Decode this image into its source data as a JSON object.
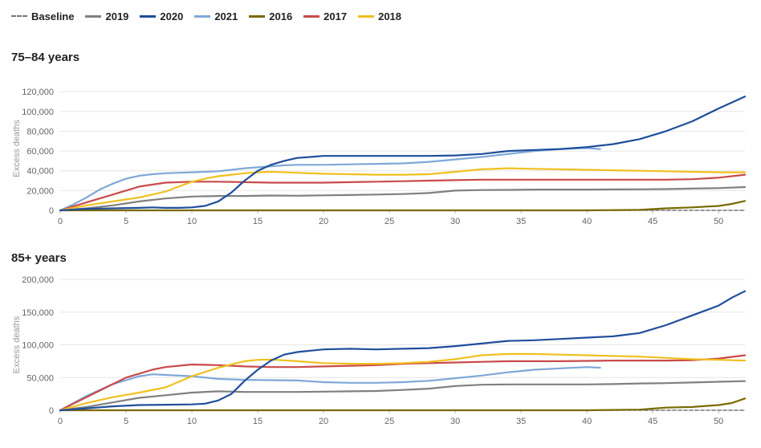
{
  "legend": [
    {
      "label": "Baseline",
      "color": "#777777",
      "dashed": true
    },
    {
      "label": "2019",
      "color": "#808080"
    },
    {
      "label": "2020",
      "color": "#1f4e9c"
    },
    {
      "label": "2021",
      "color": "#7fa8d8"
    },
    {
      "label": "2016",
      "color": "#7a6a00"
    },
    {
      "label": "2017",
      "color": "#c94a4a"
    },
    {
      "label": "2018",
      "color": "#f0c020"
    }
  ],
  "chart_data": [
    {
      "type": "line",
      "title": "75–84 years",
      "ylabel": "Excess deaths",
      "xlim": [
        0,
        52
      ],
      "ylim": [
        0,
        125000
      ],
      "xticks": [
        0,
        5,
        10,
        15,
        20,
        25,
        30,
        35,
        40,
        45,
        50
      ],
      "xtick_labels": [
        "0",
        "5",
        "10",
        "15",
        "20",
        "25",
        "30",
        "35",
        "40",
        "45",
        "50"
      ],
      "yticks": [
        0,
        20000,
        40000,
        60000,
        80000,
        100000,
        120000
      ],
      "ytick_labels": [
        "0",
        "20,000",
        "40,000",
        "60,000",
        "80,000",
        "100,000",
        "120,000"
      ],
      "grid": true,
      "series": [
        {
          "name": "Baseline",
          "color": "#777777",
          "dashed": true,
          "x": [
            0,
            52
          ],
          "y": [
            0,
            0
          ]
        },
        {
          "name": "2016",
          "color": "#7a6a00",
          "x": [
            0,
            5,
            10,
            20,
            30,
            40,
            44,
            46,
            48,
            50,
            51,
            52
          ],
          "y": [
            0,
            0,
            0,
            0,
            0,
            0,
            500,
            2000,
            3000,
            4500,
            6500,
            9500
          ]
        },
        {
          "name": "2019",
          "color": "#808080",
          "x": [
            0,
            2,
            4,
            6,
            8,
            10,
            12,
            14,
            16,
            18,
            20,
            22,
            24,
            26,
            28,
            30,
            32,
            34,
            36,
            38,
            40,
            42,
            44,
            46,
            48,
            50,
            52
          ],
          "y": [
            0,
            2000,
            5000,
            9000,
            12000,
            14000,
            14500,
            14500,
            15000,
            14800,
            15200,
            15500,
            16000,
            16500,
            17500,
            20000,
            20500,
            20700,
            21000,
            21000,
            21000,
            21200,
            21300,
            21500,
            22000,
            22500,
            23500
          ]
        },
        {
          "name": "2021",
          "color": "#7fa8d8",
          "x": [
            0,
            1,
            2,
            3,
            4,
            5,
            6,
            7,
            8,
            9,
            10,
            11,
            12,
            13,
            14,
            15,
            16,
            17,
            18,
            20,
            22,
            24,
            26,
            28,
            30,
            32,
            34,
            36,
            38,
            40,
            41
          ],
          "y": [
            0,
            6000,
            13000,
            21000,
            27000,
            32000,
            35000,
            36500,
            37500,
            38000,
            38500,
            39000,
            39500,
            41000,
            42500,
            43500,
            44500,
            45500,
            46000,
            46000,
            46500,
            47000,
            47500,
            49000,
            51500,
            54000,
            57000,
            60000,
            62000,
            63000,
            62000
          ]
        },
        {
          "name": "2017",
          "color": "#c94a4a",
          "x": [
            0,
            2,
            4,
            6,
            8,
            10,
            12,
            14,
            16,
            18,
            20,
            22,
            24,
            26,
            28,
            30,
            32,
            34,
            36,
            38,
            40,
            42,
            44,
            46,
            48,
            50,
            52
          ],
          "y": [
            0,
            8000,
            16000,
            24000,
            28000,
            29000,
            29000,
            28500,
            28000,
            28000,
            28000,
            28500,
            29000,
            29500,
            30000,
            30500,
            31000,
            31000,
            31000,
            31000,
            31000,
            31000,
            31000,
            31000,
            31500,
            33000,
            36000
          ]
        },
        {
          "name": "2018",
          "color": "#f0c020",
          "x": [
            0,
            2,
            4,
            6,
            7,
            8,
            9,
            10,
            11,
            12,
            13,
            14,
            15,
            16,
            18,
            20,
            22,
            24,
            26,
            28,
            30,
            32,
            34,
            36,
            38,
            40,
            42,
            44,
            46,
            48,
            50,
            52
          ],
          "y": [
            0,
            5000,
            9000,
            13000,
            16000,
            19000,
            24000,
            29000,
            32000,
            34500,
            36000,
            37500,
            38500,
            39000,
            38000,
            37000,
            36500,
            36000,
            36000,
            36500,
            39000,
            41500,
            42500,
            42000,
            41500,
            41000,
            40500,
            40000,
            39500,
            39000,
            38500,
            38500
          ]
        },
        {
          "name": "2020",
          "color": "#1f4e9c",
          "x": [
            0,
            2,
            4,
            6,
            7,
            8,
            9,
            10,
            11,
            12,
            13,
            14,
            15,
            16,
            17,
            18,
            19,
            20,
            22,
            24,
            26,
            28,
            30,
            32,
            34,
            36,
            38,
            40,
            42,
            44,
            46,
            48,
            50,
            52
          ],
          "y": [
            0,
            1500,
            2000,
            2500,
            3000,
            2500,
            2500,
            3000,
            4500,
            9000,
            18000,
            30000,
            40000,
            46000,
            50000,
            53000,
            54000,
            55000,
            55000,
            55000,
            55000,
            55000,
            55500,
            57000,
            60000,
            61000,
            62000,
            64000,
            67000,
            72000,
            80000,
            90000,
            103000,
            115000
          ]
        }
      ]
    },
    {
      "type": "line",
      "title": "85+ years",
      "ylabel": "Excess deaths",
      "xlim": [
        0,
        52
      ],
      "ylim": [
        0,
        200000
      ],
      "xticks": [
        0,
        5,
        10,
        15,
        20,
        25,
        30,
        35,
        40,
        45,
        50
      ],
      "xtick_labels": [
        "0",
        "5",
        "10",
        "15",
        "20",
        "25",
        "30",
        "35",
        "40",
        "45",
        "50"
      ],
      "yticks": [
        0,
        50000,
        100000,
        150000,
        200000
      ],
      "ytick_labels": [
        "0",
        "50,000",
        "100,000",
        "150,000",
        "200,000"
      ],
      "grid": true,
      "series": [
        {
          "name": "Baseline",
          "color": "#777777",
          "dashed": true,
          "x": [
            0,
            52
          ],
          "y": [
            0,
            0
          ]
        },
        {
          "name": "2016",
          "color": "#7a6a00",
          "x": [
            0,
            5,
            10,
            20,
            30,
            40,
            44,
            46,
            48,
            50,
            51,
            52
          ],
          "y": [
            0,
            0,
            0,
            0,
            0,
            0,
            1000,
            4000,
            5000,
            8000,
            11000,
            18000
          ]
        },
        {
          "name": "2019",
          "color": "#808080",
          "x": [
            0,
            2,
            4,
            6,
            8,
            10,
            12,
            14,
            16,
            18,
            20,
            22,
            24,
            26,
            28,
            30,
            32,
            34,
            36,
            38,
            40,
            42,
            44,
            46,
            48,
            50,
            52
          ],
          "y": [
            0,
            5000,
            12000,
            19000,
            23000,
            27000,
            29000,
            28000,
            28000,
            28000,
            28500,
            29000,
            29500,
            31000,
            33000,
            37000,
            39000,
            39500,
            39500,
            39500,
            39500,
            40000,
            41000,
            41500,
            42500,
            43500,
            44500
          ]
        },
        {
          "name": "2021",
          "color": "#7fa8d8",
          "x": [
            0,
            2,
            4,
            6,
            7,
            8,
            10,
            12,
            14,
            16,
            18,
            20,
            22,
            24,
            26,
            28,
            30,
            32,
            34,
            36,
            38,
            40,
            41
          ],
          "y": [
            0,
            22000,
            40000,
            52000,
            55000,
            54000,
            52000,
            48000,
            46500,
            46000,
            45500,
            43000,
            42000,
            42000,
            43000,
            45000,
            49000,
            53000,
            58000,
            62000,
            64000,
            66000,
            65000
          ]
        },
        {
          "name": "2017",
          "color": "#c94a4a",
          "x": [
            0,
            2,
            4,
            5,
            6,
            7,
            8,
            10,
            12,
            14,
            16,
            18,
            20,
            22,
            24,
            26,
            28,
            30,
            32,
            34,
            36,
            38,
            40,
            42,
            44,
            46,
            48,
            50,
            52
          ],
          "y": [
            0,
            20000,
            40000,
            50000,
            56000,
            62000,
            66000,
            70000,
            69000,
            67000,
            66000,
            66000,
            67000,
            68000,
            69000,
            71000,
            72000,
            73000,
            74000,
            75000,
            75000,
            75000,
            75500,
            76000,
            76000,
            76000,
            76500,
            79000,
            84000
          ]
        },
        {
          "name": "2018",
          "color": "#f0c020",
          "x": [
            0,
            2,
            4,
            6,
            8,
            10,
            12,
            14,
            15,
            16,
            18,
            20,
            22,
            24,
            26,
            28,
            30,
            32,
            34,
            36,
            38,
            40,
            42,
            44,
            46,
            48,
            50,
            52
          ],
          "y": [
            0,
            11000,
            20000,
            27000,
            35000,
            52000,
            65000,
            75000,
            77000,
            77500,
            75000,
            72000,
            71000,
            71000,
            72000,
            74000,
            78000,
            84000,
            86000,
            86000,
            85000,
            84000,
            83000,
            82000,
            80000,
            78000,
            77000,
            76000
          ]
        },
        {
          "name": "2020",
          "color": "#1f4e9c",
          "x": [
            0,
            2,
            4,
            6,
            8,
            10,
            11,
            12,
            13,
            14,
            15,
            16,
            17,
            18,
            19,
            20,
            22,
            24,
            26,
            28,
            30,
            32,
            34,
            36,
            38,
            40,
            42,
            44,
            46,
            48,
            50,
            51,
            52
          ],
          "y": [
            0,
            3000,
            6000,
            8000,
            8500,
            9000,
            10000,
            15000,
            25000,
            45000,
            62000,
            76000,
            85000,
            89000,
            91000,
            93000,
            94000,
            93000,
            94000,
            95000,
            98000,
            102000,
            106000,
            107000,
            109000,
            111000,
            113000,
            118000,
            130000,
            145000,
            160000,
            172000,
            182000
          ]
        }
      ]
    }
  ]
}
